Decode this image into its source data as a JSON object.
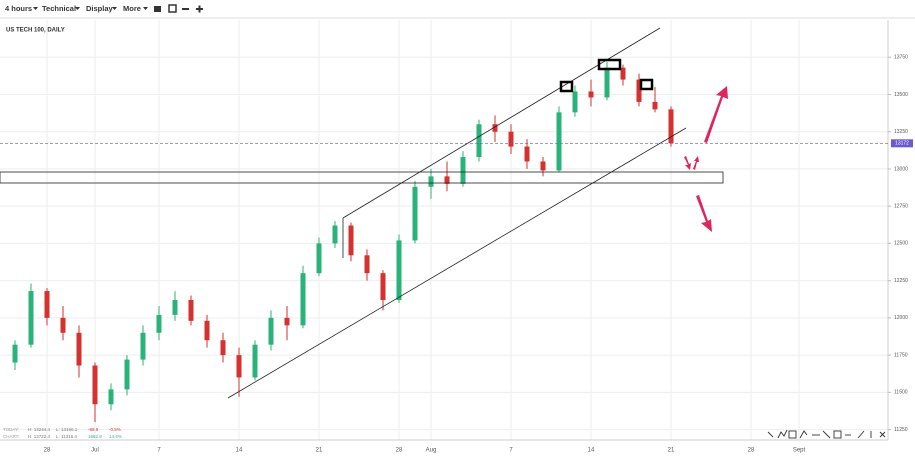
{
  "ui": {
    "toolbar": [
      "4 hours",
      "Technical",
      "Display",
      "More"
    ],
    "symbol_label": "US TECH 100, DAILY"
  },
  "info": {
    "today": {
      "label": "TODAY:",
      "high": "H: 13244.4",
      "low": "L: 13156.1",
      "change": "-89.9",
      "pct": "-0.5%"
    },
    "chart": {
      "label": "CHART:",
      "high": "H: 13722.4",
      "low": "L: 11316.4",
      "change": "1662.8",
      "pct": "14.4%"
    }
  },
  "chart_data": {
    "type": "candlestick",
    "categories": [
      null,
      null,
      "28",
      null,
      null,
      "Jul",
      null,
      null,
      null,
      "7",
      null,
      null,
      null,
      null,
      "14",
      null,
      null,
      null,
      null,
      "21",
      null,
      null,
      null,
      null,
      "28",
      null,
      "Aug",
      null,
      null,
      null,
      null,
      "7",
      null,
      null,
      null,
      null,
      "14",
      null,
      null,
      null,
      null,
      "21",
      null,
      null,
      null,
      null,
      "28",
      null,
      null,
      "Sept",
      null
    ],
    "open": [
      11700,
      11820,
      12180,
      12000,
      11900,
      11680,
      11420,
      11520,
      11720,
      11900,
      12020,
      12120,
      11980,
      11850,
      11750,
      11600,
      11820,
      12000,
      11950,
      12300,
      12500,
      12620,
      12420,
      12300,
      12120,
      12520,
      12880,
      12950,
      12900,
      13080,
      13300,
      13250,
      13150,
      13050,
      12990,
      13380,
      13520,
      13480,
      13680,
      13600,
      13450,
      13400,
      null,
      null,
      null,
      null,
      null,
      null,
      null,
      null,
      null
    ],
    "high": [
      11850,
      12230,
      12200,
      12080,
      11950,
      11700,
      11560,
      11750,
      11950,
      12080,
      12180,
      12150,
      12020,
      11900,
      11800,
      11850,
      12050,
      12080,
      12350,
      12540,
      12650,
      12640,
      12460,
      12320,
      12560,
      12920,
      13000,
      13050,
      13120,
      13330,
      13360,
      13300,
      13200,
      13080,
      13420,
      13560,
      13600,
      13720,
      13700,
      13640,
      13550,
      13420,
      null,
      null,
      null,
      null,
      null,
      null,
      null,
      null,
      null
    ],
    "low": [
      11650,
      11800,
      11950,
      11850,
      11600,
      11300,
      11380,
      11480,
      11680,
      11850,
      11980,
      11950,
      11800,
      11700,
      11470,
      11580,
      11780,
      11850,
      11930,
      12280,
      12470,
      12380,
      12250,
      12050,
      12100,
      12500,
      12800,
      12850,
      12880,
      13050,
      13180,
      13100,
      13000,
      12950,
      12980,
      13350,
      13420,
      13460,
      13560,
      13420,
      13380,
      13150,
      null,
      null,
      null,
      null,
      null,
      null,
      null,
      null,
      null
    ],
    "close": [
      11820,
      12180,
      12000,
      11900,
      11680,
      11420,
      11520,
      11720,
      11900,
      12020,
      12120,
      11980,
      11850,
      11750,
      11600,
      11820,
      12000,
      11950,
      12300,
      12500,
      12620,
      12420,
      12300,
      12120,
      12520,
      12880,
      12950,
      12900,
      13080,
      13300,
      13250,
      13150,
      13050,
      12990,
      13380,
      13520,
      13480,
      13680,
      13600,
      13450,
      13400,
      13172,
      null,
      null,
      null,
      null,
      null,
      null,
      null,
      null,
      null
    ],
    "up_color": "#2ab27b",
    "down_color": "#d5312f",
    "ylim": [
      11180,
      14000
    ],
    "yticks": [
      11250,
      11500,
      11750,
      12000,
      12250,
      12500,
      12750,
      13000,
      13250,
      13500,
      13750
    ],
    "last_price": 13172,
    "last_price_color": "#6a5acd",
    "grid": true
  }
}
